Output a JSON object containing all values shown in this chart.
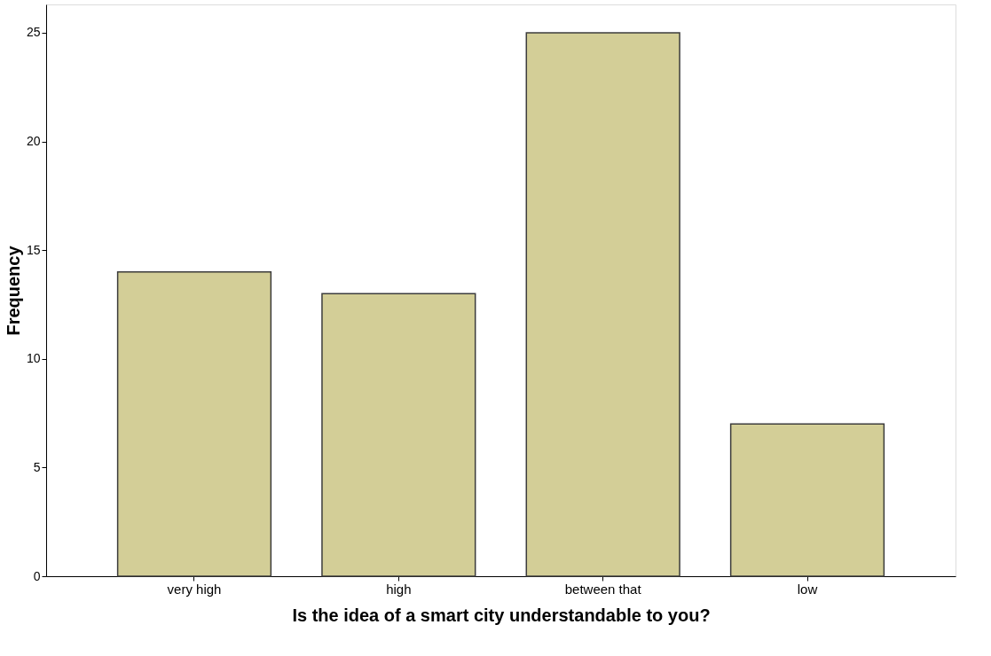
{
  "chart_data": {
    "type": "bar",
    "xlabel": "Is the idea of a smart city understandable to you?",
    "ylabel": "Frequency",
    "categories": [
      "very high",
      "high",
      "between that",
      "low"
    ],
    "values": [
      14,
      13,
      25,
      7
    ],
    "color": "#d3ce97",
    "ylim": [
      0,
      26.3
    ],
    "yticks": [
      0,
      5,
      10,
      15,
      20,
      25
    ],
    "grid": false
  }
}
